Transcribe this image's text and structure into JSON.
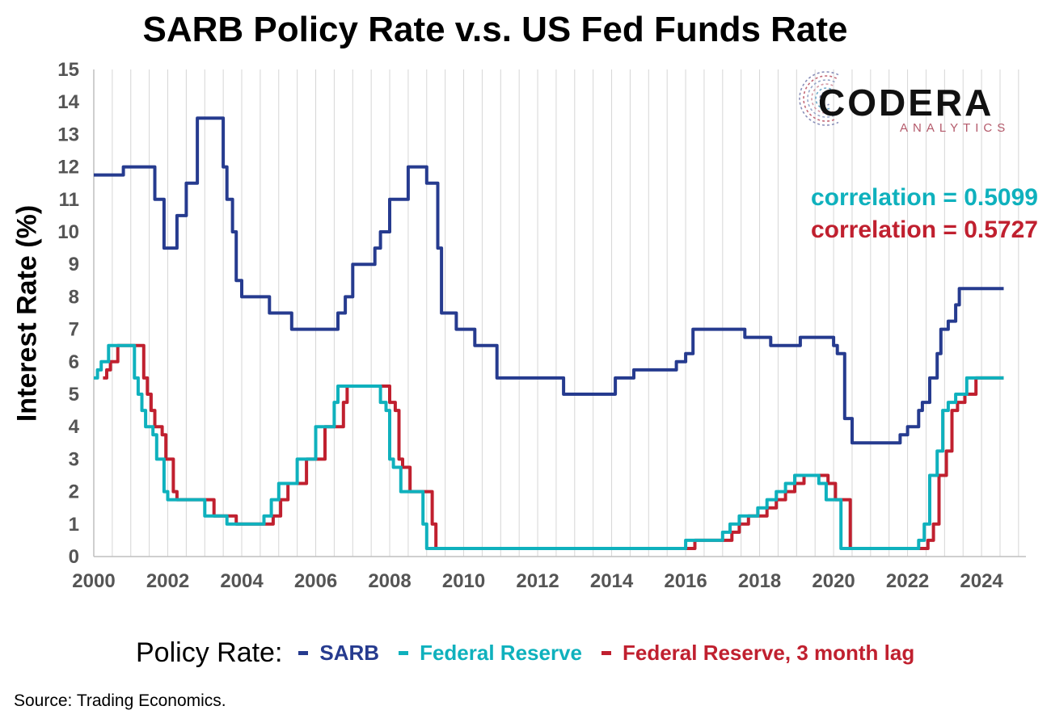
{
  "title": "SARB Policy Rate v.s. US Fed Funds Rate",
  "logo": {
    "name": "CODERA",
    "sub": "ANALYTICS"
  },
  "correlations": [
    {
      "text": "correlation = 0.5099",
      "color": "#0fb1bd"
    },
    {
      "text": "correlation = 0.5727",
      "color": "#c0202f"
    }
  ],
  "legend_title": "Policy Rate:",
  "source": "Source: Trading Economics.",
  "chart_data": {
    "type": "line",
    "title": "SARB Policy Rate v.s. US Fed Funds Rate",
    "xlabel": "",
    "ylabel": "Interest Rate (%)",
    "xlim": [
      2000,
      2025.2
    ],
    "ylim": [
      0,
      15
    ],
    "x_ticks": [
      "2000",
      "2002",
      "2004",
      "2006",
      "2008",
      "2010",
      "2012",
      "2014",
      "2016",
      "2018",
      "2020",
      "2022",
      "2024"
    ],
    "y_ticks": [
      "0",
      "1",
      "2",
      "3",
      "4",
      "5",
      "6",
      "7",
      "8",
      "9",
      "10",
      "11",
      "12",
      "13",
      "14",
      "15"
    ],
    "grid": "vertical",
    "legend_position": "bottom",
    "series": [
      {
        "name": "SARB",
        "color": "#263b8f",
        "x": [
          2000.0,
          2000.75,
          2000.8,
          2001.6,
          2001.65,
          2001.75,
          2001.9,
          2002.2,
          2002.25,
          2002.5,
          2002.8,
          2003.4,
          2003.5,
          2003.6,
          2003.75,
          2003.85,
          2004.0,
          2004.7,
          2004.75,
          2005.3,
          2005.35,
          2006.5,
          2006.6,
          2006.8,
          2007.0,
          2007.5,
          2007.6,
          2007.75,
          2008.0,
          2008.5,
          2008.9,
          2009.0,
          2009.3,
          2009.4,
          2009.6,
          2009.8,
          2010.2,
          2010.3,
          2010.7,
          2010.9,
          2012.6,
          2012.7,
          2014.0,
          2014.1,
          2014.5,
          2014.6,
          2015.6,
          2015.75,
          2016.0,
          2016.2,
          2017.5,
          2017.6,
          2018.2,
          2018.3,
          2019.0,
          2019.1,
          2019.8,
          2020.0,
          2020.1,
          2020.3,
          2020.5,
          2021.7,
          2021.8,
          2022.0,
          2022.3,
          2022.4,
          2022.6,
          2022.8,
          2022.9,
          2023.1,
          2023.3,
          2023.4,
          2024.6
        ],
        "values": [
          11.75,
          11.75,
          12.0,
          12.0,
          11.0,
          11.0,
          9.5,
          9.5,
          10.5,
          11.5,
          13.5,
          13.5,
          12.0,
          11.0,
          10.0,
          8.5,
          8.0,
          8.0,
          7.5,
          7.5,
          7.0,
          7.0,
          7.5,
          8.0,
          9.0,
          9.0,
          9.5,
          10.0,
          11.0,
          12.0,
          12.0,
          11.5,
          9.5,
          7.5,
          7.5,
          7.0,
          7.0,
          6.5,
          6.5,
          5.5,
          5.5,
          5.0,
          5.0,
          5.5,
          5.5,
          5.75,
          5.75,
          6.0,
          6.25,
          7.0,
          7.0,
          6.75,
          6.75,
          6.5,
          6.5,
          6.75,
          6.75,
          6.5,
          6.25,
          4.25,
          3.5,
          3.5,
          3.75,
          4.0,
          4.5,
          4.75,
          5.5,
          6.25,
          7.0,
          7.25,
          7.75,
          8.25,
          8.25
        ]
      },
      {
        "name": "Federal Reserve",
        "color": "#0fb1bd",
        "x": [
          2000.0,
          2000.1,
          2000.2,
          2000.3,
          2000.4,
          2001.0,
          2001.1,
          2001.2,
          2001.3,
          2001.4,
          2001.6,
          2001.7,
          2001.9,
          2002.0,
          2002.9,
          2003.0,
          2003.5,
          2003.6,
          2004.5,
          2004.6,
          2004.8,
          2005.0,
          2005.5,
          2006.0,
          2006.5,
          2006.6,
          2007.6,
          2007.75,
          2007.9,
          2008.0,
          2008.1,
          2008.3,
          2008.8,
          2008.9,
          2009.0,
          2015.9,
          2016.0,
          2016.9,
          2017.0,
          2017.2,
          2017.45,
          2017.95,
          2018.2,
          2018.45,
          2018.7,
          2018.95,
          2019.5,
          2019.6,
          2019.8,
          2020.1,
          2020.2,
          2022.2,
          2022.3,
          2022.45,
          2022.6,
          2022.8,
          2022.95,
          2023.1,
          2023.3,
          2023.6,
          2024.6
        ],
        "values": [
          5.5,
          5.75,
          6.0,
          6.0,
          6.5,
          6.5,
          5.5,
          5.0,
          4.5,
          4.0,
          3.75,
          3.0,
          2.0,
          1.75,
          1.75,
          1.25,
          1.25,
          1.0,
          1.0,
          1.25,
          1.75,
          2.25,
          3.0,
          4.0,
          4.75,
          5.25,
          5.25,
          4.75,
          4.5,
          3.0,
          2.75,
          2.0,
          2.0,
          1.0,
          0.25,
          0.25,
          0.5,
          0.5,
          0.75,
          1.0,
          1.25,
          1.5,
          1.75,
          2.0,
          2.25,
          2.5,
          2.5,
          2.25,
          1.75,
          1.75,
          0.25,
          0.25,
          0.5,
          1.0,
          2.5,
          3.25,
          4.5,
          4.75,
          5.0,
          5.5,
          5.5
        ]
      },
      {
        "name": "Federal Reserve, 3 month lag",
        "color": "#c0202f",
        "x": [
          2000.25,
          2000.35,
          2000.45,
          2000.55,
          2000.65,
          2001.25,
          2001.35,
          2001.45,
          2001.55,
          2001.65,
          2001.85,
          2001.95,
          2002.15,
          2002.25,
          2003.15,
          2003.25,
          2003.75,
          2003.85,
          2004.75,
          2004.85,
          2005.05,
          2005.25,
          2005.75,
          2006.25,
          2006.75,
          2006.85,
          2007.85,
          2008.0,
          2008.15,
          2008.25,
          2008.35,
          2008.55,
          2009.05,
          2009.15,
          2009.25,
          2016.15,
          2016.25,
          2017.15,
          2017.25,
          2017.45,
          2017.7,
          2018.2,
          2018.45,
          2018.7,
          2018.95,
          2019.2,
          2019.75,
          2019.85,
          2020.05,
          2020.35,
          2020.45,
          2022.45,
          2022.55,
          2022.7,
          2022.85,
          2023.05,
          2023.2,
          2023.35,
          2023.55,
          2023.85,
          2024.6
        ],
        "values": [
          5.5,
          5.75,
          6.0,
          6.0,
          6.5,
          6.5,
          5.5,
          5.0,
          4.5,
          4.0,
          3.75,
          3.0,
          2.0,
          1.75,
          1.75,
          1.25,
          1.25,
          1.0,
          1.0,
          1.25,
          1.75,
          2.25,
          3.0,
          4.0,
          4.75,
          5.25,
          5.25,
          4.75,
          4.5,
          3.0,
          2.75,
          2.0,
          2.0,
          1.0,
          0.25,
          0.25,
          0.5,
          0.5,
          0.75,
          1.0,
          1.25,
          1.5,
          1.75,
          2.0,
          2.25,
          2.5,
          2.5,
          2.25,
          1.75,
          1.75,
          0.25,
          0.25,
          0.5,
          1.0,
          2.5,
          3.25,
          4.5,
          4.75,
          5.0,
          5.5,
          5.5
        ]
      }
    ]
  }
}
